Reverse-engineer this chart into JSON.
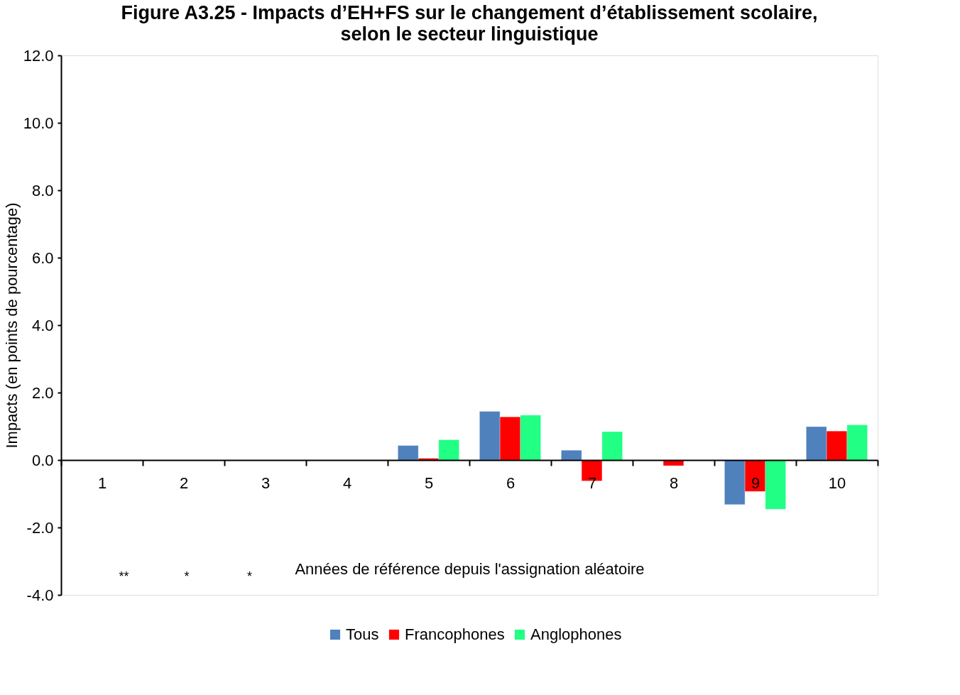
{
  "chart_data": {
    "type": "bar",
    "title": "Figure A3.25 - Impacts d’EH+FS sur le changement d’établissement scolaire, selon le secteur linguistique",
    "xlabel": "Années de référence depuis l'assignation aléatoire",
    "ylabel": "Impacts (en points de pourcentage)",
    "categories": [
      "1",
      "2",
      "3",
      "4",
      "5",
      "6",
      "7",
      "8",
      "9",
      "10"
    ],
    "series": [
      {
        "name": "Tous",
        "color": "#4f81bd",
        "values": [
          null,
          null,
          null,
          null,
          0.43,
          1.44,
          0.29,
          null,
          -1.32,
          0.99
        ]
      },
      {
        "name": "Francophones",
        "color": "#ff0000",
        "values": [
          null,
          null,
          null,
          null,
          0.05,
          1.28,
          -0.62,
          -0.17,
          -0.93,
          0.86
        ]
      },
      {
        "name": "Anglophones",
        "color": "#21ff85",
        "values": [
          null,
          null,
          null,
          null,
          0.6,
          1.33,
          0.84,
          null,
          -1.46,
          1.04
        ]
      }
    ],
    "annotations": [
      "**",
      "*",
      "*"
    ],
    "ylim": [
      -4.0,
      12.0
    ],
    "yticks": [
      {
        "value": -4,
        "label": "-4.0"
      },
      {
        "value": -2,
        "label": "-2.0"
      },
      {
        "value": 0,
        "label": "0.0"
      },
      {
        "value": 2,
        "label": "2.0"
      },
      {
        "value": 4,
        "label": "4.0"
      },
      {
        "value": 6,
        "label": "6.0"
      },
      {
        "value": 8,
        "label": "8.0"
      },
      {
        "value": 10,
        "label": "10.0"
      },
      {
        "value": 12,
        "label": "12.0"
      }
    ],
    "grid": false,
    "legend": "bottom"
  }
}
